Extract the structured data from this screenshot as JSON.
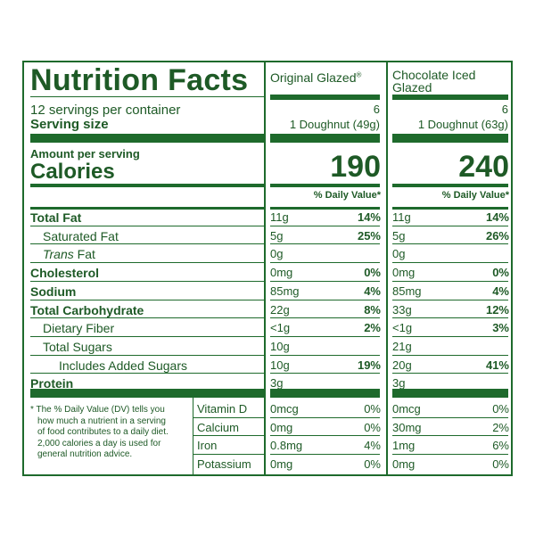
{
  "header": {
    "title": "Nutrition Facts",
    "servings": "12 servings per container",
    "serving_size_label": "Serving size",
    "amount_per_serving": "Amount per serving",
    "calories_label": "Calories",
    "dv_header": "% Daily Value*"
  },
  "products": [
    {
      "name": "Original Glazed",
      "reg": "®",
      "servings_count": "6",
      "serving_size": "1 Doughnut (49g)",
      "calories": "190"
    },
    {
      "name_line1": "Chocolate Iced",
      "name_line2": "Glazed",
      "servings_count": "6",
      "serving_size": "1 Doughnut (63g)",
      "calories": "240"
    }
  ],
  "nutrients": [
    {
      "label": "Total Fat",
      "p1": {
        "amt": "11g",
        "dv": "14%"
      },
      "p2": {
        "amt": "11g",
        "dv": "14%"
      }
    },
    {
      "label": "Saturated Fat",
      "p1": {
        "amt": "5g",
        "dv": "25%"
      },
      "p2": {
        "amt": "5g",
        "dv": "26%"
      }
    },
    {
      "label_italic": "Trans",
      "label": " Fat",
      "p1": {
        "amt": "0g",
        "dv": ""
      },
      "p2": {
        "amt": "0g",
        "dv": ""
      }
    },
    {
      "label": "Cholesterol",
      "p1": {
        "amt": "0mg",
        "dv": "0%"
      },
      "p2": {
        "amt": "0mg",
        "dv": "0%"
      }
    },
    {
      "label": "Sodium",
      "p1": {
        "amt": "85mg",
        "dv": "4%"
      },
      "p2": {
        "amt": "85mg",
        "dv": "4%"
      }
    },
    {
      "label": "Total Carbohydrate",
      "p1": {
        "amt": "22g",
        "dv": "8%"
      },
      "p2": {
        "amt": "33g",
        "dv": "12%"
      }
    },
    {
      "label": "Dietary Fiber",
      "p1": {
        "amt": "<1g",
        "dv": "2%"
      },
      "p2": {
        "amt": "<1g",
        "dv": "3%"
      }
    },
    {
      "label": "Total Sugars",
      "p1": {
        "amt": "10g",
        "dv": ""
      },
      "p2": {
        "amt": "21g",
        "dv": ""
      }
    },
    {
      "label": "Includes Added Sugars",
      "p1": {
        "amt": "10g",
        "dv": "19%"
      },
      "p2": {
        "amt": "20g",
        "dv": "41%"
      }
    },
    {
      "label": "Protein",
      "p1": {
        "amt": "3g",
        "dv": ""
      },
      "p2": {
        "amt": "3g",
        "dv": ""
      }
    }
  ],
  "vitamins": [
    {
      "label": "Vitamin D",
      "p1": {
        "amt": "0mcg",
        "dv": "0%"
      },
      "p2": {
        "amt": "0mcg",
        "dv": "0%"
      }
    },
    {
      "label": "Calcium",
      "p1": {
        "amt": "0mg",
        "dv": "0%"
      },
      "p2": {
        "amt": "30mg",
        "dv": "2%"
      }
    },
    {
      "label": "Iron",
      "p1": {
        "amt": "0.8mg",
        "dv": "4%"
      },
      "p2": {
        "amt": "1mg",
        "dv": "6%"
      }
    },
    {
      "label": "Potassium",
      "p1": {
        "amt": "0mg",
        "dv": "0%"
      },
      "p2": {
        "amt": "0mg",
        "dv": "0%"
      }
    }
  ],
  "footnote": [
    "* The % Daily Value (DV) tells you",
    "how much a nutrient in a serving",
    "of food contributes to a daily diet.",
    "2,000 calories a day is used for",
    "general nutrition advice."
  ],
  "colors": {
    "ink": "#1e5a26",
    "rule": "#1e6a2c",
    "background": "#ffffff"
  }
}
